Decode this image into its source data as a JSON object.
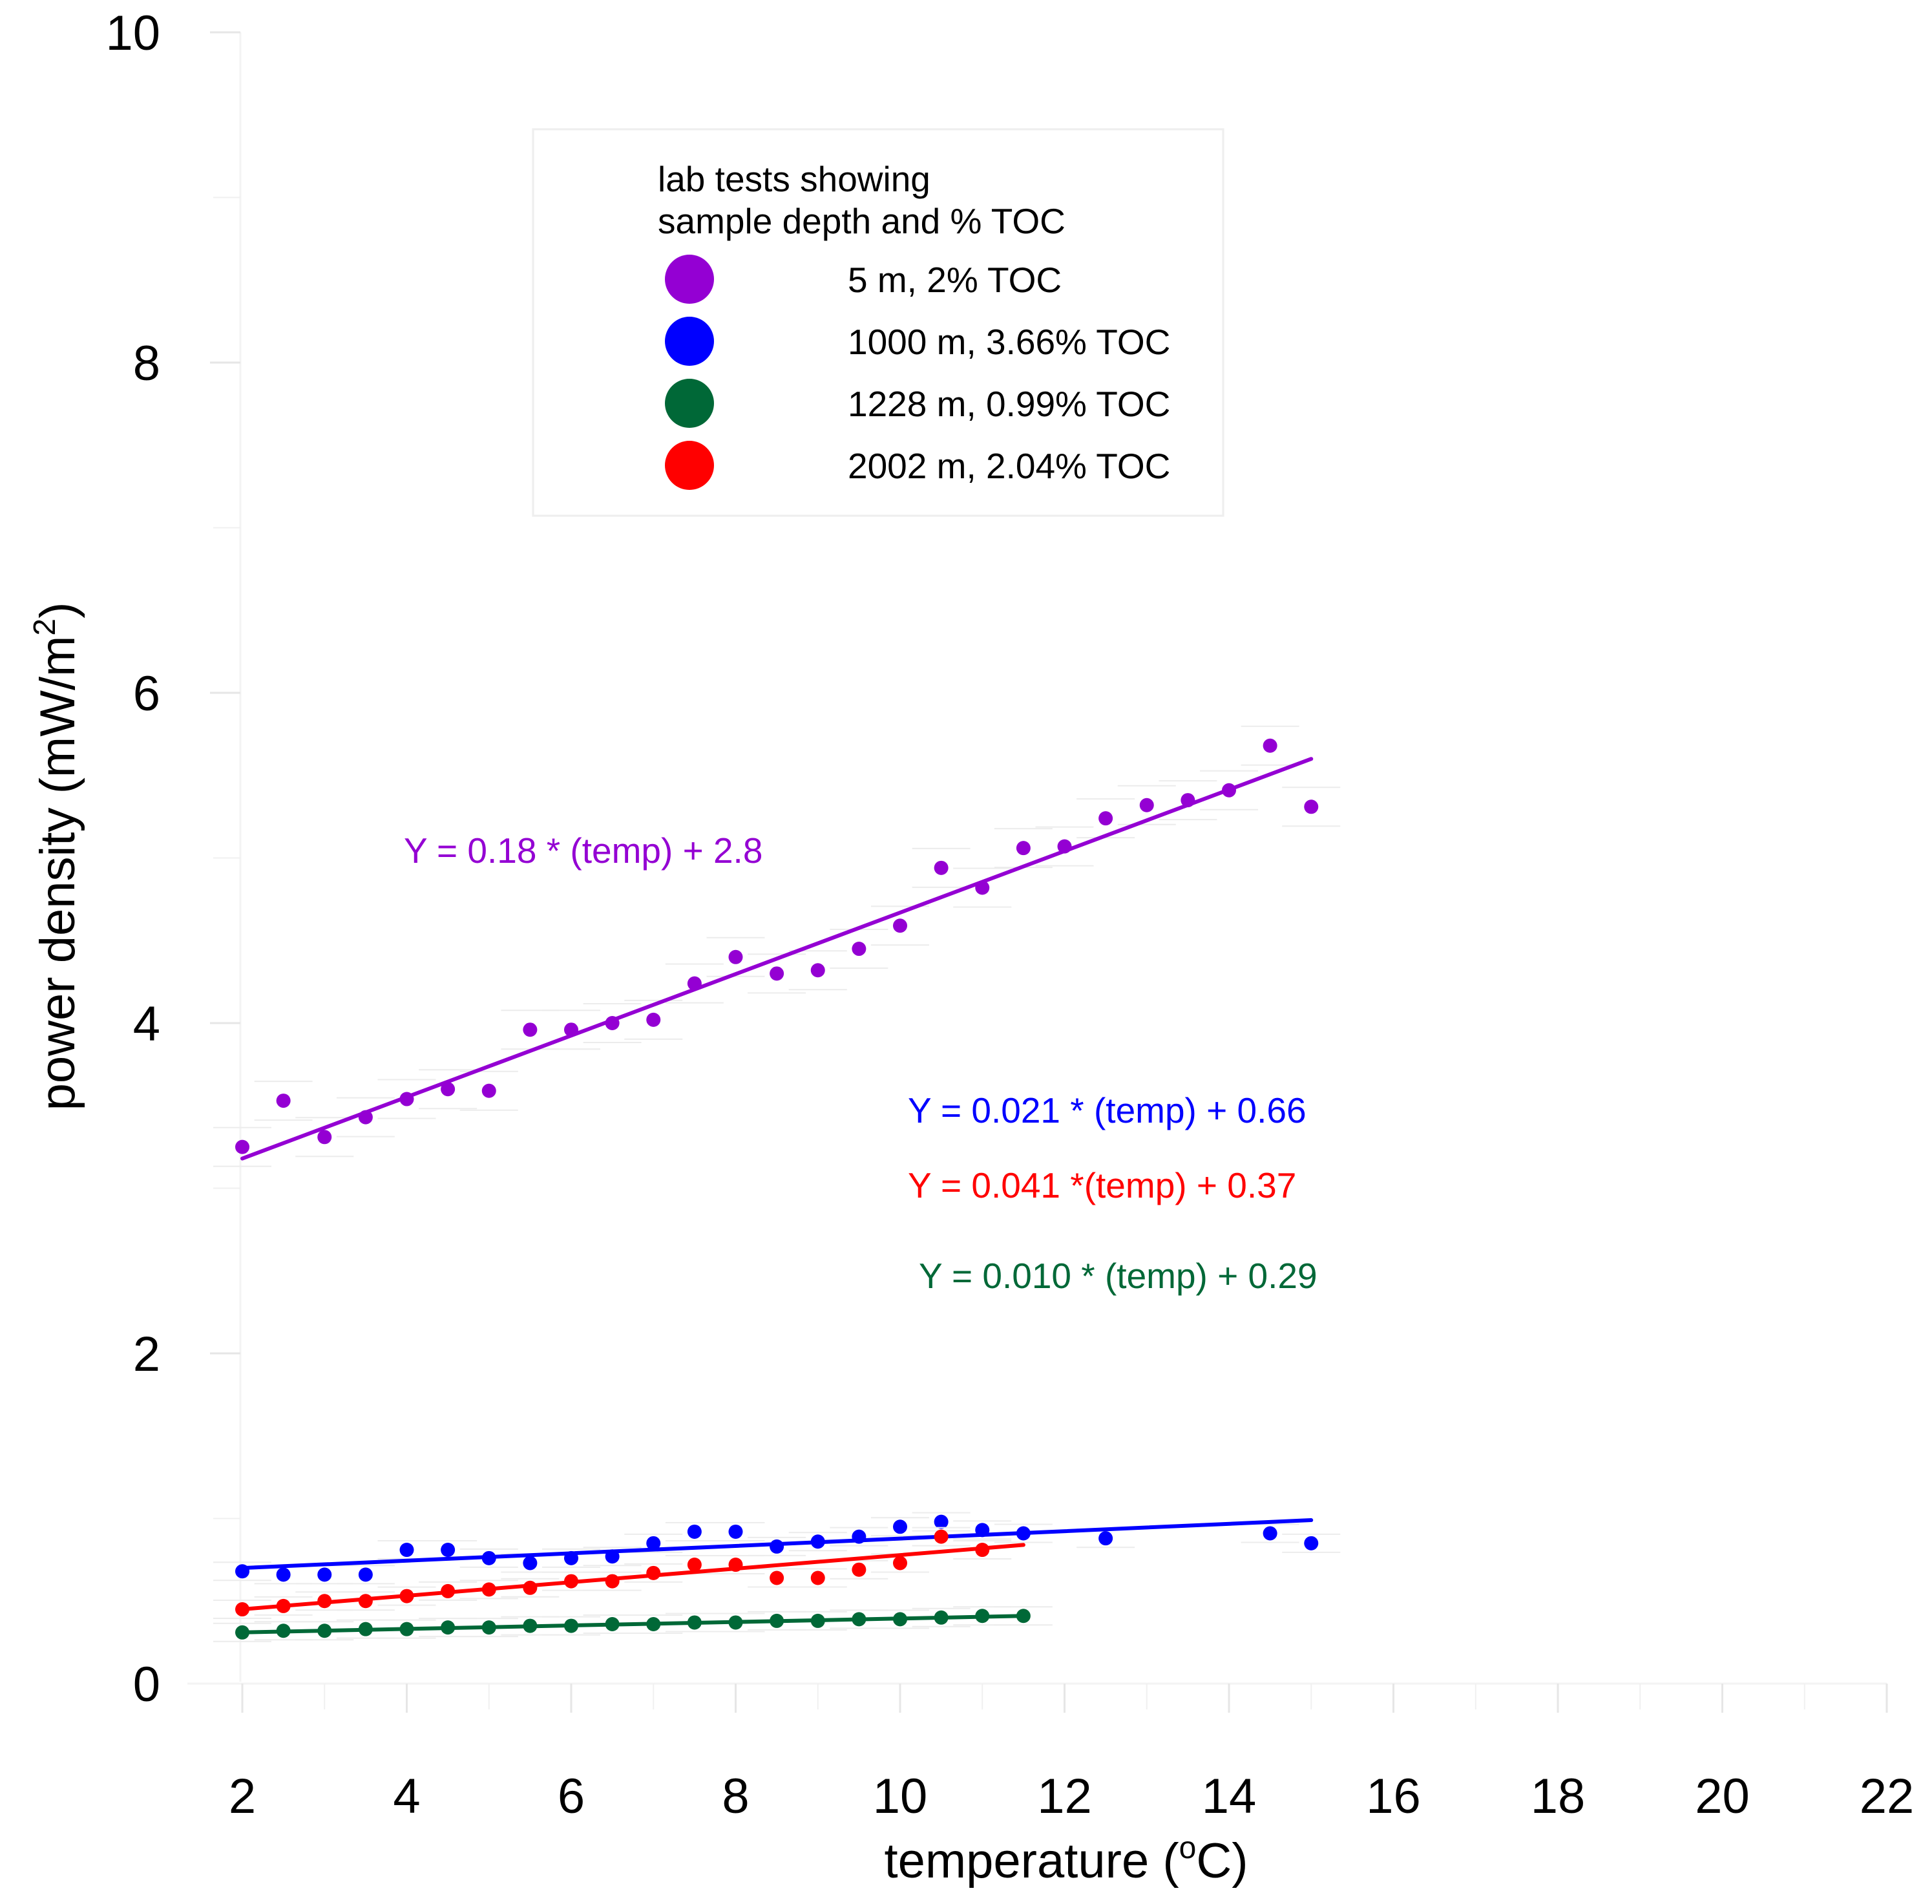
{
  "chart_data": {
    "type": "scatter",
    "title": "",
    "xlabel": "temperature (",
    "xlabel_sup": "o",
    "xlabel_end": "C)",
    "ylabel": "power density (mW/m",
    "ylabel_sup": "2",
    "ylabel_end": ")",
    "xlim": [
      2,
      22
    ],
    "ylim": [
      0,
      10
    ],
    "xticks": [
      2,
      4,
      6,
      8,
      10,
      12,
      14,
      16,
      18,
      20,
      22
    ],
    "yticks": [
      0,
      2,
      4,
      6,
      8,
      10
    ],
    "grid": false,
    "legend": {
      "position": "top-center",
      "title_line1": "lab tests showing",
      "title_line2": "sample depth and % TOC"
    },
    "series": [
      {
        "name": "5 m, 2% TOC",
        "color": "#9400D3",
        "equation": "Y = 0.18 * (temp) + 2.8",
        "fit": {
          "x0": 2,
          "y0": 3.18,
          "x1": 15,
          "y1": 5.6
        },
        "x": [
          2,
          2.5,
          3,
          3.5,
          4,
          4.5,
          5,
          5.5,
          6,
          6.5,
          7,
          7.5,
          8,
          8.5,
          9,
          9.5,
          10,
          10.5,
          11,
          11.5,
          12,
          12.5,
          13,
          13.5,
          14,
          14.5,
          15
        ],
        "y": [
          3.25,
          3.53,
          3.31,
          3.43,
          3.54,
          3.6,
          3.59,
          3.96,
          3.96,
          4.0,
          4.02,
          4.24,
          4.4,
          4.3,
          4.32,
          4.45,
          4.59,
          4.94,
          4.82,
          5.06,
          5.07,
          5.24,
          5.32,
          5.35,
          5.41,
          5.68,
          5.31
        ]
      },
      {
        "name": "1000 m, 3.66% TOC",
        "color": "#0000FF",
        "equation": "Y = 0.021 * (temp) + 0.66",
        "fit": {
          "x0": 2,
          "y0": 0.7,
          "x1": 15,
          "y1": 0.99
        },
        "x": [
          2,
          2.5,
          3,
          3.5,
          4,
          4.5,
          5,
          5.5,
          6,
          6.5,
          7,
          7.5,
          8,
          8.5,
          9,
          9.5,
          10,
          10.5,
          11,
          11.5,
          12.5,
          14.5,
          15
        ],
        "y": [
          0.68,
          0.66,
          0.66,
          0.66,
          0.81,
          0.81,
          0.76,
          0.73,
          0.76,
          0.77,
          0.85,
          0.92,
          0.92,
          0.83,
          0.86,
          0.89,
          0.95,
          0.98,
          0.93,
          0.91,
          0.88,
          0.91,
          0.85
        ]
      },
      {
        "name": "1228 m, 0.99% TOC",
        "color": "#006837",
        "equation": "Y = 0.010 * (temp) + 0.29",
        "fit": {
          "x0": 2,
          "y0": 0.31,
          "x1": 11.5,
          "y1": 0.41
        },
        "x": [
          2,
          2.5,
          3,
          3.5,
          4,
          4.5,
          5,
          5.5,
          6,
          6.5,
          7,
          7.5,
          8,
          8.5,
          9,
          9.5,
          10,
          10.5,
          11,
          11.5
        ],
        "y": [
          0.31,
          0.32,
          0.32,
          0.33,
          0.33,
          0.34,
          0.34,
          0.35,
          0.35,
          0.36,
          0.36,
          0.37,
          0.37,
          0.38,
          0.38,
          0.39,
          0.39,
          0.4,
          0.41,
          0.41
        ]
      },
      {
        "name": "2002 m, 2.04% TOC",
        "color": "#FF0000",
        "equation": "Y = 0.041 *(temp) + 0.37",
        "fit": {
          "x0": 2,
          "y0": 0.45,
          "x1": 11.5,
          "y1": 0.84
        },
        "x": [
          2,
          2.5,
          3,
          3.5,
          4,
          4.5,
          5,
          5.5,
          6,
          6.5,
          7,
          7.5,
          8,
          8.5,
          9,
          9.5,
          10,
          10.5,
          11
        ],
        "y": [
          0.45,
          0.47,
          0.5,
          0.5,
          0.53,
          0.56,
          0.57,
          0.58,
          0.62,
          0.62,
          0.67,
          0.72,
          0.72,
          0.64,
          0.64,
          0.69,
          0.73,
          0.89,
          0.81
        ]
      }
    ]
  }
}
